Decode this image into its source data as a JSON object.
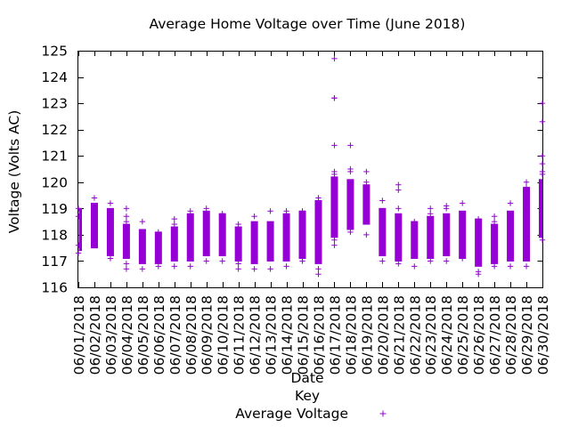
{
  "chart_data": {
    "type": "candlestick",
    "title": "Average Home Voltage over Time (June 2018)",
    "xlabel": "Date",
    "ylabel": "Voltage (Volts AC)",
    "ylim": [
      116,
      125
    ],
    "yticks": [
      116,
      117,
      118,
      119,
      120,
      121,
      122,
      123,
      124,
      125
    ],
    "grid": false,
    "legend": {
      "title": "Key",
      "entries": [
        "Average Voltage"
      ],
      "placement": "bottom"
    },
    "color": "#9400d3",
    "categories": [
      "06/01/2018",
      "06/02/2018",
      "06/03/2018",
      "06/04/2018",
      "06/05/2018",
      "06/06/2018",
      "06/07/2018",
      "06/08/2018",
      "06/09/2018",
      "06/10/2018",
      "06/11/2018",
      "06/12/2018",
      "06/13/2018",
      "06/14/2018",
      "06/15/2018",
      "06/16/2018",
      "06/17/2018",
      "06/18/2018",
      "06/19/2018",
      "06/20/2018",
      "06/21/2018",
      "06/22/2018",
      "06/23/2018",
      "06/24/2018",
      "06/25/2018",
      "06/26/2018",
      "06/27/2018",
      "06/28/2018",
      "06/29/2018",
      "06/30/2018"
    ],
    "boxes": [
      {
        "low": 117.4,
        "high": 119.0
      },
      {
        "low": 117.5,
        "high": 119.2
      },
      {
        "low": 117.2,
        "high": 119.0
      },
      {
        "low": 117.1,
        "high": 118.4
      },
      {
        "low": 116.9,
        "high": 118.2
      },
      {
        "low": 116.9,
        "high": 118.1
      },
      {
        "low": 117.0,
        "high": 118.3
      },
      {
        "low": 117.0,
        "high": 118.8
      },
      {
        "low": 117.2,
        "high": 118.9
      },
      {
        "low": 117.2,
        "high": 118.8
      },
      {
        "low": 117.0,
        "high": 118.3
      },
      {
        "low": 116.9,
        "high": 118.5
      },
      {
        "low": 117.0,
        "high": 118.5
      },
      {
        "low": 117.0,
        "high": 118.8
      },
      {
        "low": 117.1,
        "high": 118.9
      },
      {
        "low": 116.9,
        "high": 119.3
      },
      {
        "low": 117.9,
        "high": 120.2
      },
      {
        "low": 118.2,
        "high": 120.1
      },
      {
        "low": 118.4,
        "high": 119.9
      },
      {
        "low": 117.2,
        "high": 119.0
      },
      {
        "low": 117.0,
        "high": 118.8
      },
      {
        "low": 117.1,
        "high": 118.5
      },
      {
        "low": 117.1,
        "high": 118.7
      },
      {
        "low": 117.2,
        "high": 118.8
      },
      {
        "low": 117.1,
        "high": 118.9
      },
      {
        "low": 116.8,
        "high": 118.6
      },
      {
        "low": 116.9,
        "high": 118.4
      },
      {
        "low": 117.0,
        "high": 118.9
      },
      {
        "low": 117.0,
        "high": 119.8
      },
      {
        "low": 117.9,
        "high": 120.1
      }
    ],
    "outliers": [
      [
        119.0,
        118.7,
        117.6,
        117.3
      ],
      [
        119.4
      ],
      [
        119.2,
        117.1
      ],
      [
        119.0,
        118.7,
        118.5,
        116.9,
        116.7
      ],
      [
        118.5,
        116.7
      ],
      [
        118.1,
        116.8
      ],
      [
        118.6,
        118.4,
        116.8
      ],
      [
        118.9,
        116.8
      ],
      [
        119.0,
        117.0
      ],
      [
        118.8,
        117.0
      ],
      [
        118.4,
        116.9,
        116.7
      ],
      [
        118.7,
        116.7
      ],
      [
        118.9,
        116.7
      ],
      [
        118.9,
        116.8
      ],
      [
        118.9,
        117.0
      ],
      [
        119.4,
        116.7,
        116.5
      ],
      [
        124.7,
        123.2,
        123.2,
        121.4,
        120.4,
        120.3,
        117.8,
        117.6
      ],
      [
        121.4,
        120.5,
        120.4,
        118.1
      ],
      [
        120.4,
        120.0,
        118.0
      ],
      [
        119.3,
        117.0
      ],
      [
        119.9,
        119.7,
        119.0,
        118.7,
        116.9
      ],
      [
        118.5,
        116.8
      ],
      [
        119.0,
        118.8,
        117.0
      ],
      [
        119.1,
        119.0,
        117.0
      ],
      [
        119.2,
        117.1
      ],
      [
        118.6,
        116.6,
        116.5
      ],
      [
        118.7,
        118.5,
        116.8
      ],
      [
        119.2,
        118.8,
        116.8
      ],
      [
        120.0,
        119.8,
        116.8
      ],
      [
        123.0,
        122.3,
        121.0,
        120.7,
        120.4,
        120.3,
        117.8
      ]
    ]
  }
}
